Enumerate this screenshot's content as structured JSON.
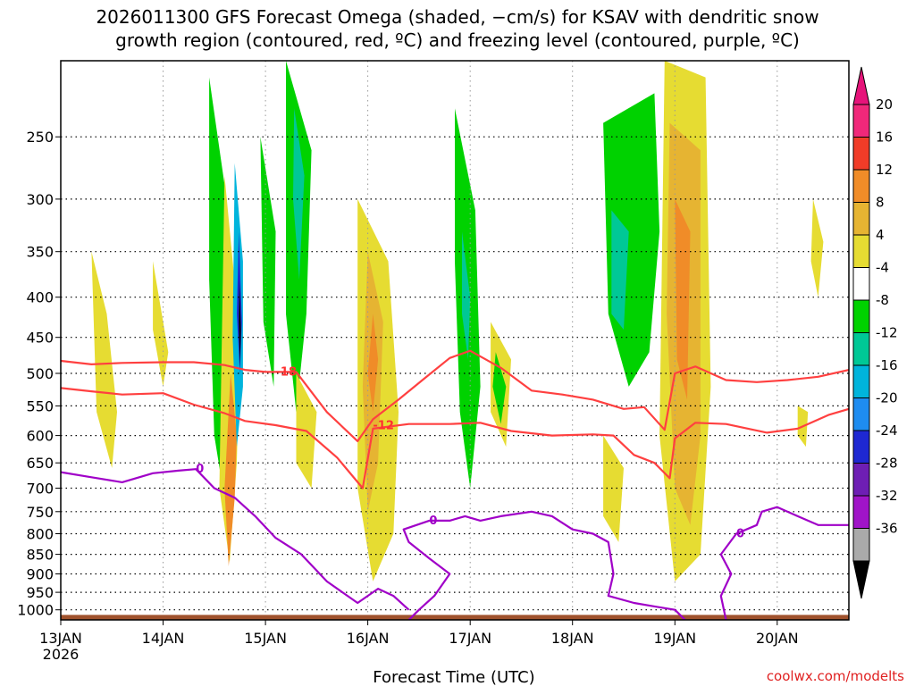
{
  "chart_data": {
    "type": "heatmap",
    "title_lines": [
      "2026011300 GFS Forecast Omega (shaded, −cm/s) for KSAV with dendritic snow",
      "growth region (contoured, red, ºC) and freezing level (contoured, purple, ºC)"
    ],
    "xlabel": "Forecast Time (UTC)",
    "credit": "coolwx.com/modelts",
    "x_range_days": [
      0,
      7.7
    ],
    "y_range_hpa": [
      200,
      1030
    ],
    "x_ticks": [
      {
        "day": 0,
        "label": "13JAN",
        "sub": "2026"
      },
      {
        "day": 1,
        "label": "14JAN"
      },
      {
        "day": 2,
        "label": "15JAN"
      },
      {
        "day": 3,
        "label": "16JAN"
      },
      {
        "day": 4,
        "label": "17JAN"
      },
      {
        "day": 5,
        "label": "18JAN"
      },
      {
        "day": 6,
        "label": "19JAN"
      },
      {
        "day": 7,
        "label": "20JAN"
      }
    ],
    "y_ticks": [
      {
        "p": 250,
        "label": "250"
      },
      {
        "p": 300,
        "label": "300"
      },
      {
        "p": 350,
        "label": "350"
      },
      {
        "p": 400,
        "label": "400"
      },
      {
        "p": 450,
        "label": "450"
      },
      {
        "p": 500,
        "label": "500"
      },
      {
        "p": 550,
        "label": "550"
      },
      {
        "p": 600,
        "label": "600"
      },
      {
        "p": 650,
        "label": "650"
      },
      {
        "p": 700,
        "label": "700"
      },
      {
        "p": 750,
        "label": "750"
      },
      {
        "p": 800,
        "label": "800"
      },
      {
        "p": 850,
        "label": "850"
      },
      {
        "p": 900,
        "label": "900"
      },
      {
        "p": 950,
        "label": "950"
      },
      {
        "p": 1000,
        "label": "1000"
      }
    ],
    "colorbar": {
      "levels": [
        {
          "label": "20",
          "color": "#f0287a"
        },
        {
          "label": "16",
          "color": "#f03c28"
        },
        {
          "label": "12",
          "color": "#f08c28"
        },
        {
          "label": "8",
          "color": "#e6b432"
        },
        {
          "label": "4",
          "color": "#e6dc32"
        },
        {
          "label": "-4",
          "color": "#ffffff"
        },
        {
          "label": "-8",
          "color": "#00d200"
        },
        {
          "label": "-12",
          "color": "#00c896"
        },
        {
          "label": "-16",
          "color": "#00b4dc"
        },
        {
          "label": "-20",
          "color": "#1e8cf0"
        },
        {
          "label": "-24",
          "color": "#1e28d2"
        },
        {
          "label": "-28",
          "color": "#6e1eb4"
        },
        {
          "label": "-32",
          "color": "#a014c8"
        },
        {
          "label": "-36",
          "color": "#aaaaaa"
        }
      ],
      "top_arrow_color": "#e6147a",
      "bottom_arrow_color": "#000000"
    },
    "shaded_regions": [
      {
        "color": "#e6dc32",
        "points": [
          [
            0.3,
            350
          ],
          [
            0.45,
            420
          ],
          [
            0.55,
            560
          ],
          [
            0.5,
            660
          ],
          [
            0.35,
            560
          ]
        ]
      },
      {
        "color": "#e6dc32",
        "points": [
          [
            0.9,
            360
          ],
          [
            1.05,
            470
          ],
          [
            1.0,
            520
          ],
          [
            0.9,
            440
          ]
        ]
      },
      {
        "color": "#00d200",
        "points": [
          [
            1.45,
            210
          ],
          [
            1.62,
            300
          ],
          [
            1.68,
            600
          ],
          [
            1.62,
            750
          ],
          [
            1.5,
            600
          ],
          [
            1.45,
            380
          ]
        ]
      },
      {
        "color": "#e6dc32",
        "points": [
          [
            1.6,
            280
          ],
          [
            1.75,
            450
          ],
          [
            1.72,
            650
          ],
          [
            1.65,
            870
          ],
          [
            1.55,
            700
          ]
        ]
      },
      {
        "color": "#f08c28",
        "points": [
          [
            1.66,
            500
          ],
          [
            1.72,
            600
          ],
          [
            1.7,
            720
          ],
          [
            1.64,
            880
          ],
          [
            1.6,
            700
          ]
        ]
      },
      {
        "color": "#00b4dc",
        "points": [
          [
            1.7,
            270
          ],
          [
            1.78,
            360
          ],
          [
            1.78,
            520
          ],
          [
            1.72,
            620
          ],
          [
            1.68,
            450
          ]
        ]
      },
      {
        "color": "#1e28d2",
        "points": [
          [
            1.74,
            330
          ],
          [
            1.77,
            430
          ],
          [
            1.75,
            500
          ],
          [
            1.72,
            420
          ]
        ]
      },
      {
        "color": "#000000",
        "points": [
          [
            1.745,
            380
          ],
          [
            1.76,
            440
          ],
          [
            1.75,
            490
          ],
          [
            1.74,
            430
          ]
        ]
      },
      {
        "color": "#00d200",
        "points": [
          [
            2.2,
            200
          ],
          [
            2.45,
            260
          ],
          [
            2.4,
            420
          ],
          [
            2.3,
            560
          ],
          [
            2.2,
            420
          ]
        ]
      },
      {
        "color": "#00c896",
        "points": [
          [
            2.28,
            230
          ],
          [
            2.38,
            280
          ],
          [
            2.33,
            380
          ],
          [
            2.27,
            300
          ]
        ]
      },
      {
        "color": "#00d200",
        "points": [
          [
            1.95,
            250
          ],
          [
            2.1,
            330
          ],
          [
            2.08,
            520
          ],
          [
            1.98,
            430
          ]
        ]
      },
      {
        "color": "#e6dc32",
        "points": [
          [
            2.3,
            500
          ],
          [
            2.5,
            560
          ],
          [
            2.45,
            700
          ],
          [
            2.3,
            650
          ]
        ]
      },
      {
        "color": "#e6dc32",
        "points": [
          [
            2.9,
            300
          ],
          [
            3.2,
            360
          ],
          [
            3.3,
            560
          ],
          [
            3.25,
            800
          ],
          [
            3.05,
            920
          ],
          [
            2.9,
            700
          ]
        ]
      },
      {
        "color": "#e6b432",
        "points": [
          [
            3.0,
            350
          ],
          [
            3.15,
            430
          ],
          [
            3.1,
            650
          ],
          [
            3.0,
            750
          ],
          [
            2.95,
            520
          ]
        ]
      },
      {
        "color": "#f08c28",
        "points": [
          [
            3.05,
            420
          ],
          [
            3.1,
            480
          ],
          [
            3.05,
            560
          ],
          [
            3.0,
            500
          ]
        ]
      },
      {
        "color": "#00d200",
        "points": [
          [
            3.85,
            230
          ],
          [
            4.05,
            310
          ],
          [
            4.1,
            520
          ],
          [
            4.0,
            700
          ],
          [
            3.9,
            560
          ],
          [
            3.85,
            360
          ]
        ]
      },
      {
        "color": "#00c896",
        "points": [
          [
            3.92,
            330
          ],
          [
            4.0,
            400
          ],
          [
            3.98,
            480
          ],
          [
            3.92,
            420
          ]
        ]
      },
      {
        "color": "#e6dc32",
        "points": [
          [
            4.2,
            430
          ],
          [
            4.4,
            480
          ],
          [
            4.35,
            620
          ],
          [
            4.2,
            560
          ]
        ]
      },
      {
        "color": "#00d200",
        "points": [
          [
            4.25,
            470
          ],
          [
            4.35,
            520
          ],
          [
            4.3,
            580
          ],
          [
            4.22,
            520
          ]
        ]
      },
      {
        "color": "#00d200",
        "points": [
          [
            5.3,
            240
          ],
          [
            5.8,
            220
          ],
          [
            5.85,
            330
          ],
          [
            5.75,
            470
          ],
          [
            5.55,
            520
          ],
          [
            5.35,
            420
          ]
        ]
      },
      {
        "color": "#00c896",
        "points": [
          [
            5.38,
            310
          ],
          [
            5.55,
            330
          ],
          [
            5.5,
            440
          ],
          [
            5.38,
            420
          ]
        ]
      },
      {
        "color": "#e6dc32",
        "points": [
          [
            5.9,
            200
          ],
          [
            6.3,
            210
          ],
          [
            6.35,
            520
          ],
          [
            6.25,
            850
          ],
          [
            6.0,
            920
          ],
          [
            5.85,
            600
          ]
        ]
      },
      {
        "color": "#e6b432",
        "points": [
          [
            5.95,
            240
          ],
          [
            6.25,
            260
          ],
          [
            6.25,
            600
          ],
          [
            6.15,
            780
          ],
          [
            6.0,
            700
          ],
          [
            5.92,
            420
          ]
        ]
      },
      {
        "color": "#f08c28",
        "points": [
          [
            6.0,
            300
          ],
          [
            6.15,
            330
          ],
          [
            6.12,
            540
          ],
          [
            6.02,
            480
          ]
        ]
      },
      {
        "color": "#e6dc32",
        "points": [
          [
            5.3,
            600
          ],
          [
            5.5,
            660
          ],
          [
            5.45,
            820
          ],
          [
            5.3,
            760
          ]
        ]
      },
      {
        "color": "#e6dc32",
        "points": [
          [
            7.35,
            300
          ],
          [
            7.45,
            340
          ],
          [
            7.4,
            400
          ],
          [
            7.33,
            360
          ]
        ]
      },
      {
        "color": "#e6dc32",
        "points": [
          [
            7.2,
            550
          ],
          [
            7.3,
            560
          ],
          [
            7.28,
            620
          ],
          [
            7.2,
            600
          ]
        ]
      }
    ],
    "contours": [
      {
        "name": "-18 C",
        "color": "#ff4040",
        "label": "-18",
        "label_at": [
          2.1,
          498
        ],
        "points": [
          [
            0,
            482
          ],
          [
            0.3,
            487
          ],
          [
            0.6,
            485
          ],
          [
            1.0,
            484
          ],
          [
            1.3,
            484
          ],
          [
            1.6,
            488
          ],
          [
            1.8,
            495
          ],
          [
            2.0,
            498
          ],
          [
            2.3,
            498
          ],
          [
            2.6,
            560
          ],
          [
            2.9,
            610
          ],
          [
            3.05,
            572
          ],
          [
            3.3,
            540
          ],
          [
            3.55,
            508
          ],
          [
            3.8,
            478
          ],
          [
            4.0,
            468
          ],
          [
            4.3,
            492
          ],
          [
            4.6,
            526
          ],
          [
            4.9,
            532
          ],
          [
            5.2,
            540
          ],
          [
            5.5,
            555
          ],
          [
            5.7,
            552
          ],
          [
            5.9,
            590
          ],
          [
            6.0,
            500
          ],
          [
            6.2,
            490
          ],
          [
            6.5,
            510
          ],
          [
            6.8,
            513
          ],
          [
            7.1,
            510
          ],
          [
            7.4,
            505
          ],
          [
            7.7,
            495
          ]
        ]
      },
      {
        "name": "-12 C",
        "color": "#ff4040",
        "label": "-12",
        "label_at": [
          3.05,
          583
        ],
        "points": [
          [
            0,
            522
          ],
          [
            0.3,
            527
          ],
          [
            0.6,
            532
          ],
          [
            1.0,
            530
          ],
          [
            1.3,
            548
          ],
          [
            1.6,
            562
          ],
          [
            1.8,
            575
          ],
          [
            2.1,
            582
          ],
          [
            2.4,
            592
          ],
          [
            2.7,
            640
          ],
          [
            2.95,
            700
          ],
          [
            3.05,
            588
          ],
          [
            3.4,
            580
          ],
          [
            3.8,
            580
          ],
          [
            4.1,
            578
          ],
          [
            4.4,
            592
          ],
          [
            4.8,
            600
          ],
          [
            5.2,
            598
          ],
          [
            5.4,
            600
          ],
          [
            5.6,
            635
          ],
          [
            5.8,
            650
          ],
          [
            5.95,
            680
          ],
          [
            6.0,
            605
          ],
          [
            6.2,
            578
          ],
          [
            6.5,
            580
          ],
          [
            6.9,
            595
          ],
          [
            7.2,
            588
          ],
          [
            7.5,
            565
          ],
          [
            7.7,
            555
          ]
        ]
      },
      {
        "name": "0 C",
        "color": "#a000c8",
        "label": "0",
        "label_at": [
          1.32,
          662
        ],
        "points": [
          [
            0,
            668
          ],
          [
            0.3,
            678
          ],
          [
            0.6,
            688
          ],
          [
            0.9,
            670
          ],
          [
            1.15,
            665
          ],
          [
            1.32,
            662
          ],
          [
            1.5,
            700
          ],
          [
            1.7,
            720
          ],
          [
            1.9,
            760
          ],
          [
            2.1,
            810
          ],
          [
            2.35,
            850
          ],
          [
            2.6,
            920
          ],
          [
            2.9,
            980
          ],
          [
            3.1,
            940
          ],
          [
            3.25,
            960
          ],
          [
            3.4,
            1000
          ]
        ]
      },
      {
        "name": "0 C second",
        "color": "#a000c8",
        "label": "0",
        "label_at": [
          3.6,
          770
        ],
        "points": [
          [
            3.4,
            1030
          ],
          [
            3.5,
            1000
          ],
          [
            3.65,
            960
          ],
          [
            3.8,
            900
          ],
          [
            3.6,
            860
          ],
          [
            3.4,
            820
          ],
          [
            3.35,
            790
          ],
          [
            3.6,
            770
          ],
          [
            3.8,
            770
          ],
          [
            3.95,
            760
          ],
          [
            4.1,
            770
          ],
          [
            4.3,
            760
          ],
          [
            4.6,
            750
          ],
          [
            4.8,
            760
          ],
          [
            5.0,
            790
          ],
          [
            5.2,
            800
          ],
          [
            5.35,
            820
          ],
          [
            5.4,
            900
          ],
          [
            5.35,
            960
          ],
          [
            5.6,
            980
          ],
          [
            5.8,
            990
          ],
          [
            6.0,
            1000
          ],
          [
            6.1,
            1030
          ]
        ]
      },
      {
        "name": "0 C third",
        "color": "#a000c8",
        "label": "0",
        "label_at": [
          6.6,
          800
        ],
        "points": [
          [
            6.5,
            1030
          ],
          [
            6.45,
            960
          ],
          [
            6.55,
            900
          ],
          [
            6.45,
            850
          ],
          [
            6.6,
            800
          ],
          [
            6.8,
            780
          ],
          [
            6.85,
            750
          ],
          [
            7.0,
            740
          ],
          [
            7.2,
            760
          ],
          [
            7.4,
            780
          ],
          [
            7.7,
            780
          ]
        ]
      }
    ],
    "ground": {
      "color": "#a0522d",
      "pressure_top": 1015
    }
  }
}
